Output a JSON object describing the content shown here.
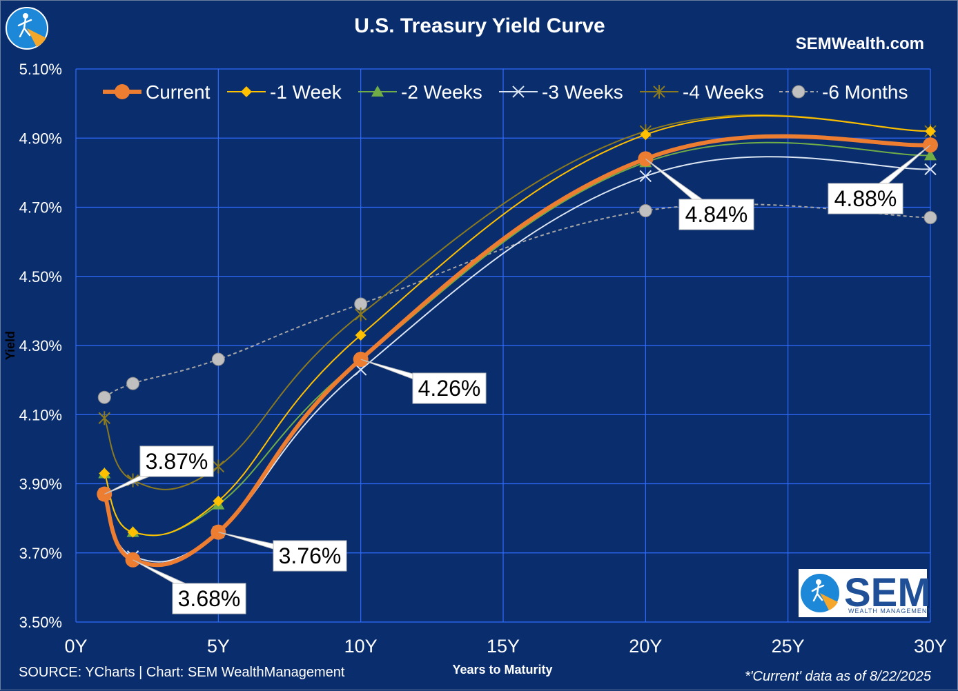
{
  "header": {
    "title": "U.S. Treasury Yield Curve",
    "site": "SEMWealth.com"
  },
  "footer": {
    "source": "SOURCE: YCharts | Chart: SEM WealthManagement",
    "note": "*'Current' data as of 8/22/2025"
  },
  "logo": {
    "text": "SEM",
    "subtext": "WEALTH MANAGEMENT"
  },
  "colors": {
    "background": "#0a2d6e",
    "grid": "#2f6bff",
    "current": "#ed7d31",
    "week1": "#ffc000",
    "week2": "#70ad47",
    "week3": "#dbe5f1",
    "week4": "#8c7a1e",
    "month6": "#a6a6a6"
  },
  "chart_data": {
    "type": "line",
    "title": "U.S. Treasury Yield Curve",
    "xlabel": "Years to Maturity",
    "ylabel": "Yield",
    "x_ticks": [
      "0Y",
      "5Y",
      "10Y",
      "15Y",
      "20Y",
      "25Y",
      "30Y"
    ],
    "y_ticks": [
      "3.50%",
      "3.70%",
      "3.90%",
      "4.10%",
      "4.30%",
      "4.50%",
      "4.70%",
      "4.90%",
      "5.10%"
    ],
    "xlim": [
      0,
      30
    ],
    "ylim": [
      3.5,
      5.1
    ],
    "grid": true,
    "legend_position": "top",
    "x": [
      1,
      2,
      5,
      10,
      20,
      30
    ],
    "series": [
      {
        "key": "current",
        "name": "Current",
        "values": [
          3.87,
          3.68,
          3.76,
          4.26,
          4.84,
          4.88
        ],
        "marker": "circle",
        "width": 6
      },
      {
        "key": "week1",
        "name": "-1 Week",
        "values": [
          3.93,
          3.76,
          3.85,
          4.33,
          4.91,
          4.92
        ],
        "marker": "diamond",
        "width": 2
      },
      {
        "key": "week2",
        "name": "-2 Weeks",
        "values": [
          3.93,
          3.76,
          3.84,
          4.26,
          4.83,
          4.85
        ],
        "marker": "triangle",
        "width": 2
      },
      {
        "key": "week3",
        "name": "-3 Weeks",
        "values": [
          3.87,
          3.69,
          3.76,
          4.23,
          4.79,
          4.81
        ],
        "marker": "x",
        "width": 2
      },
      {
        "key": "week4",
        "name": "-4 Weeks",
        "values": [
          4.09,
          3.91,
          3.95,
          4.39,
          4.92,
          4.92
        ],
        "marker": "star",
        "width": 2
      },
      {
        "key": "month6",
        "name": "-6 Months",
        "values": [
          4.15,
          4.19,
          4.26,
          4.42,
          4.69,
          4.67
        ],
        "marker": "gray-circle",
        "width": 2,
        "dashed": true
      }
    ],
    "annotations": [
      "3.87%",
      "3.68%",
      "3.76%",
      "4.26%",
      "4.84%",
      "4.88%"
    ]
  }
}
